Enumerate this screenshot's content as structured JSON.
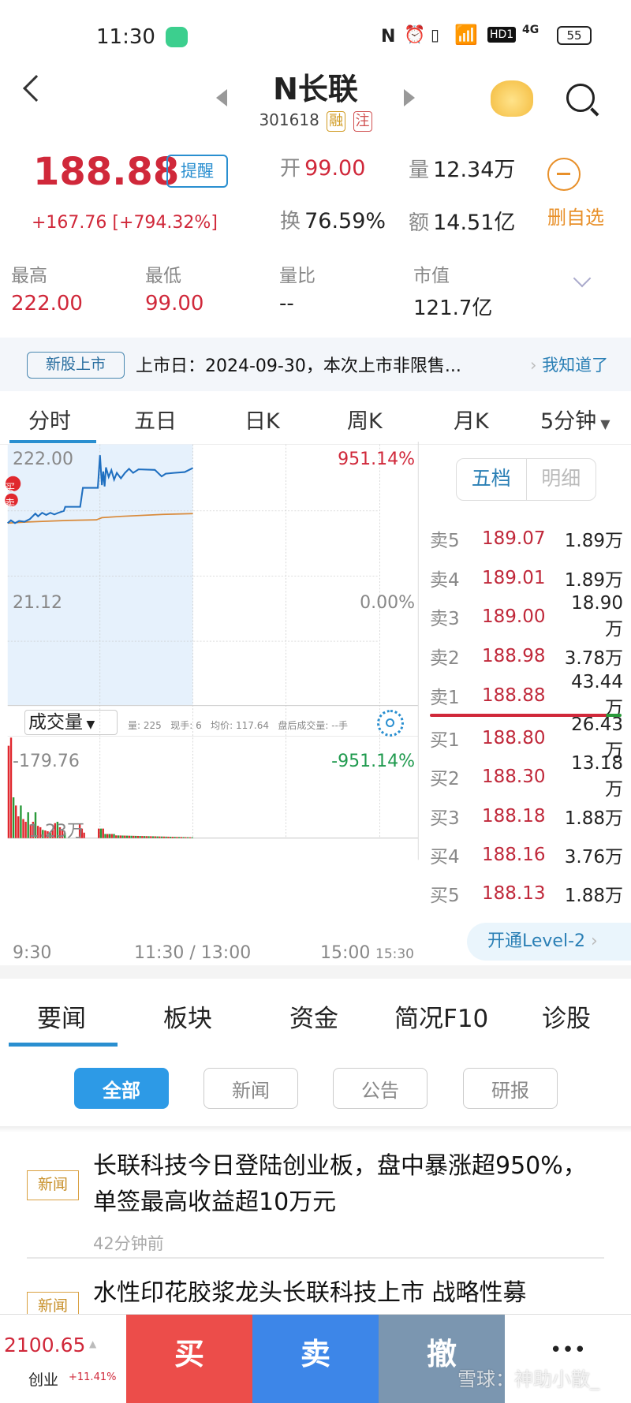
{
  "status": {
    "time": "11:30",
    "battery": "55",
    "network": "4G",
    "hd": "HD1"
  },
  "header": {
    "title": "N长联",
    "code": "301618",
    "tag_margin": "融",
    "tag_note": "注"
  },
  "quote": {
    "price": "188.88",
    "alert": "提醒",
    "change": "+167.76",
    "change_pct": "[+794.32%]",
    "open_label": "开",
    "open": "99.00",
    "vol_label": "量",
    "vol": "12.34万",
    "turnover_label": "换",
    "turnover": "76.59%",
    "amount_label": "额",
    "amount": "14.51亿",
    "remove_watch": "删自选"
  },
  "stats": [
    {
      "label": "最高",
      "value": "222.00"
    },
    {
      "label": "最低",
      "value": "99.00"
    },
    {
      "label": "量比",
      "value": "--"
    },
    {
      "label": "市值",
      "value": "121.7亿"
    }
  ],
  "notice": {
    "tag": "新股上市",
    "text": "上市日：2024-09-30，本次上市非限售...",
    "action": "我知道了"
  },
  "chart_tabs": [
    "分时",
    "五日",
    "日K",
    "周K",
    "月K",
    "5分钟"
  ],
  "chart": {
    "price_high": "222.00",
    "price_mid": "21.12",
    "price_low": "-179.76",
    "pct_high": "951.14%",
    "pct_mid": "0.00%",
    "pct_low": "-951.14%",
    "vol_selector": "成交量",
    "vol_info": "量: 225   现手: 6   均价: 117.64   盘后成交量: --手",
    "vol_max": "1.23万",
    "time_labels": [
      "9:30",
      "11:30 / 13:00",
      "15:00",
      "15:30"
    ],
    "markers": [
      "买",
      "卖"
    ],
    "colors": {
      "price": "#1f6fc0",
      "avg": "#d98a3a",
      "up": "#e0282e",
      "down": "#2a9a3a"
    }
  },
  "orderbook": {
    "tabs": [
      "五档",
      "明细"
    ],
    "asks": [
      {
        "k": "卖5",
        "p": "189.07",
        "q": "1.89万"
      },
      {
        "k": "卖4",
        "p": "189.01",
        "q": "1.89万"
      },
      {
        "k": "卖3",
        "p": "189.00",
        "q": "18.90万"
      },
      {
        "k": "卖2",
        "p": "188.98",
        "q": "3.78万"
      },
      {
        "k": "卖1",
        "p": "188.88",
        "q": "43.44万"
      }
    ],
    "bids": [
      {
        "k": "买1",
        "p": "188.80",
        "q": "26.43万"
      },
      {
        "k": "买2",
        "p": "188.30",
        "q": "13.18万"
      },
      {
        "k": "买3",
        "p": "188.18",
        "q": "1.88万"
      },
      {
        "k": "买4",
        "p": "188.16",
        "q": "3.76万"
      },
      {
        "k": "买5",
        "p": "188.13",
        "q": "1.88万"
      }
    ],
    "level2": "开通Level-2"
  },
  "news_tabs": [
    "要闻",
    "板块",
    "资金",
    "简况F10",
    "诊股"
  ],
  "filters": [
    "全部",
    "新闻",
    "公告",
    "研报"
  ],
  "news": [
    {
      "tag": "新闻",
      "title": "长联科技今日登陆创业板，盘中暴涨超950%，单签最高收益超10万元",
      "time": "42分钟前"
    },
    {
      "tag": "新闻",
      "title": "水性印花胶浆龙头长联科技上市 战略性募"
    }
  ],
  "bottom": {
    "index_value": "2100.65",
    "index_name": "创业",
    "index_change": "+11.41%",
    "buy": "买",
    "sell": "卖",
    "cancel": "撤",
    "more": "•••",
    "watermark": "雪球：神助小散_"
  }
}
